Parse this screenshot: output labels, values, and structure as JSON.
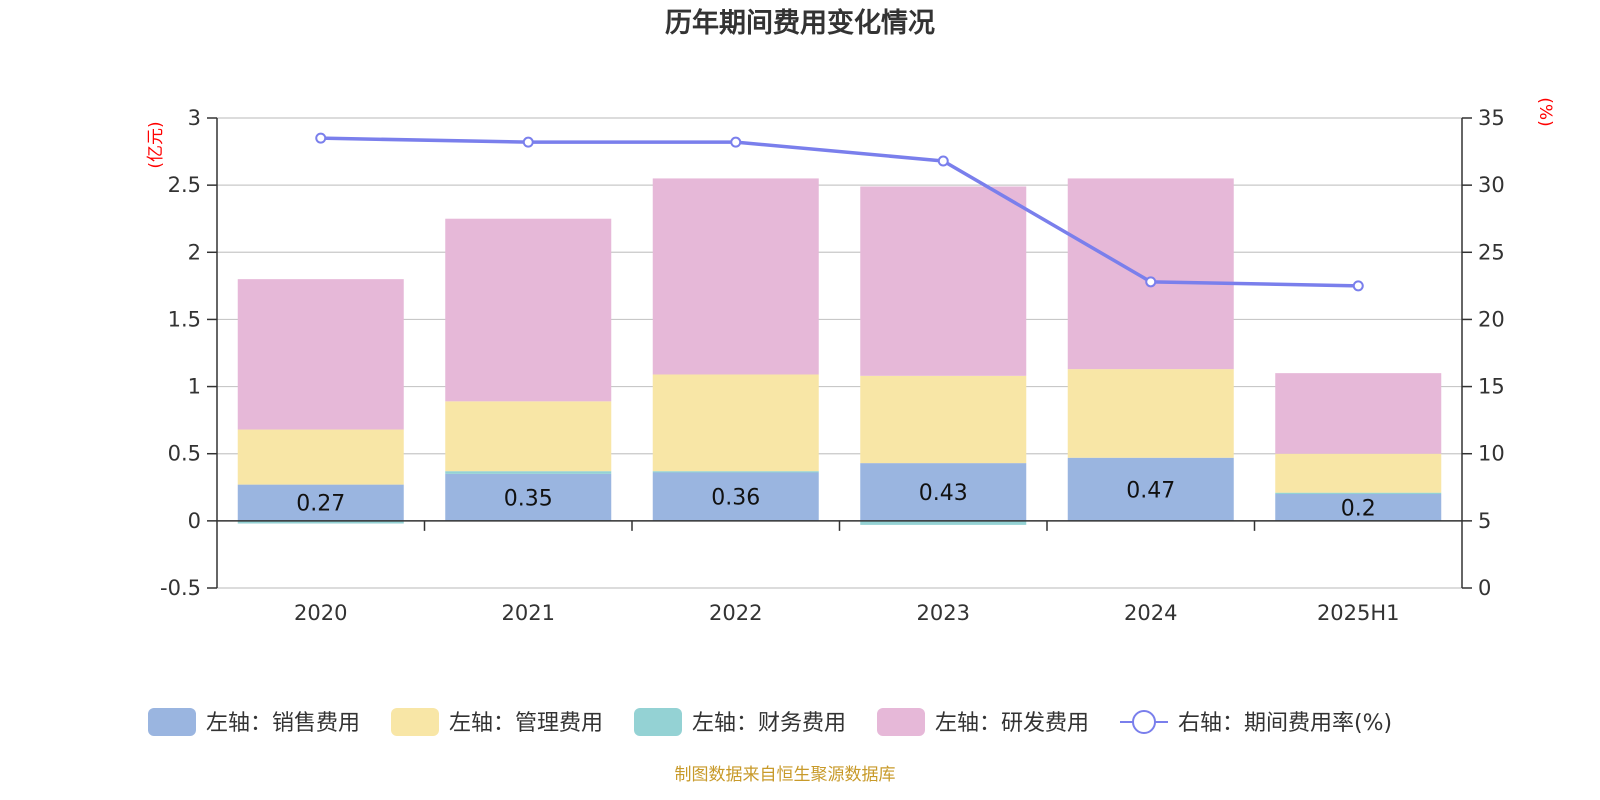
{
  "title": "历年期间费用变化情况",
  "source": "制图数据来自恒生聚源数据库",
  "units": {
    "left": "(亿元)",
    "right": "(%)"
  },
  "colors": {
    "sales": "#9ab5e0",
    "admin": "#f8e6a6",
    "finance": "#94d2d4",
    "rd": "#e6b8d8",
    "rate": "#7a7fec"
  },
  "legend": [
    {
      "key": "sales",
      "label": "左轴：销售费用",
      "shape": "rect"
    },
    {
      "key": "admin",
      "label": "左轴：管理费用",
      "shape": "rect"
    },
    {
      "key": "finance",
      "label": "左轴：财务费用",
      "shape": "rect"
    },
    {
      "key": "rd",
      "label": "左轴：研发费用",
      "shape": "rect"
    },
    {
      "key": "rate",
      "label": "右轴：期间费用率(%)",
      "shape": "line"
    }
  ],
  "chart_data": {
    "type": "bar",
    "stacked": true,
    "title": "历年期间费用变化情况",
    "categories": [
      "2020",
      "2021",
      "2022",
      "2023",
      "2024",
      "2025H1"
    ],
    "y_left": {
      "unit": "(亿元)",
      "min": -0.5,
      "max": 3,
      "ticks": [
        "-0.5",
        "0",
        "0.5",
        "1",
        "1.5",
        "2",
        "2.5",
        "3"
      ]
    },
    "y_right": {
      "unit": "(%)",
      "min": 0,
      "max": 35,
      "ticks": [
        "0",
        "5",
        "10",
        "15",
        "20",
        "25",
        "30",
        "35"
      ]
    },
    "grid": true,
    "legend_position": "bottom",
    "series": [
      {
        "key": "sales",
        "name": "左轴：销售费用",
        "axis": "left",
        "type": "bar",
        "values": [
          0.27,
          0.35,
          0.36,
          0.43,
          0.47,
          0.2
        ],
        "labels": [
          "0.27",
          "0.35",
          "0.36",
          "0.43",
          "0.47",
          "0.2"
        ]
      },
      {
        "key": "finance",
        "name": "左轴：财务费用",
        "axis": "left",
        "type": "bar",
        "values": [
          -0.02,
          0.02,
          0.01,
          -0.03,
          0.0,
          0.01
        ]
      },
      {
        "key": "admin",
        "name": "左轴：管理费用",
        "axis": "left",
        "type": "bar",
        "values": [
          0.41,
          0.52,
          0.72,
          0.65,
          0.66,
          0.29
        ]
      },
      {
        "key": "rd",
        "name": "左轴：研发费用",
        "axis": "left",
        "type": "bar",
        "values": [
          1.12,
          1.36,
          1.46,
          1.41,
          1.42,
          0.6
        ]
      },
      {
        "key": "rate",
        "name": "右轴：期间费用率(%)",
        "axis": "right",
        "type": "line",
        "values": [
          33.5,
          33.2,
          33.2,
          31.8,
          22.8,
          22.5
        ]
      }
    ]
  }
}
